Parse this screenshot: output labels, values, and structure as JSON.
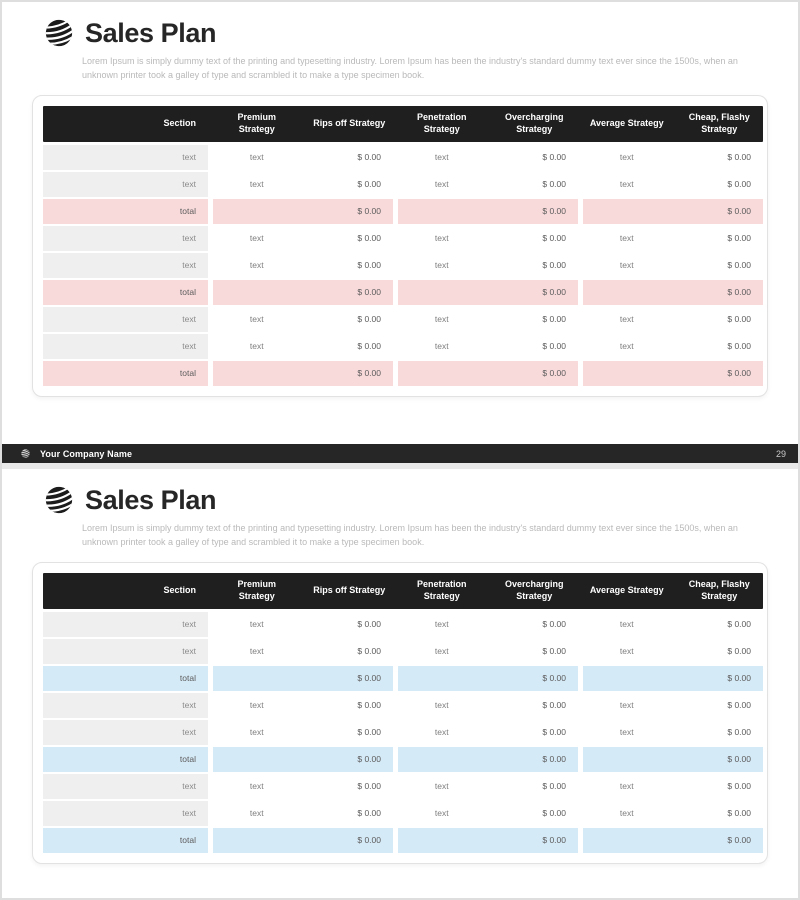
{
  "page": {
    "title": "Sales Plan",
    "description": "Lorem Ipsum is simply dummy text of the printing and typesetting industry. Lorem Ipsum has been the industry's standard dummy text ever since the 1500s, when an unknown printer took a galley of type and scrambled it to make a type specimen book.",
    "footer_company": "Your Company Name",
    "footer_page": "29"
  },
  "table": {
    "header": [
      "Section",
      "Premium Strategy",
      "Rips off Strategy",
      "Penetration Strategy",
      "Overcharging Strategy",
      "Average Strategy",
      "Cheap, Flashy Strategy"
    ],
    "row_groups": [
      {
        "rows": [
          [
            "text",
            "text",
            "$ 0.00",
            "text",
            "$ 0.00",
            "text",
            "$ 0.00"
          ],
          [
            "text",
            "text",
            "$ 0.00",
            "text",
            "$ 0.00",
            "text",
            "$ 0.00"
          ]
        ],
        "total": {
          "label": "total",
          "values": [
            "$ 0.00",
            "$ 0.00",
            "$ 0.00"
          ]
        }
      },
      {
        "rows": [
          [
            "text",
            "text",
            "$ 0.00",
            "text",
            "$ 0.00",
            "text",
            "$ 0.00"
          ],
          [
            "text",
            "text",
            "$ 0.00",
            "text",
            "$ 0.00",
            "text",
            "$ 0.00"
          ]
        ],
        "total": {
          "label": "total",
          "values": [
            "$ 0.00",
            "$ 0.00",
            "$ 0.00"
          ]
        }
      },
      {
        "rows": [
          [
            "text",
            "text",
            "$ 0.00",
            "text",
            "$ 0.00",
            "text",
            "$ 0.00"
          ],
          [
            "text",
            "text",
            "$ 0.00",
            "text",
            "$ 0.00",
            "text",
            "$ 0.00"
          ]
        ],
        "total": {
          "label": "total",
          "values": [
            "$ 0.00",
            "$ 0.00",
            "$ 0.00"
          ]
        }
      }
    ]
  },
  "slides": [
    {
      "variant": "pink",
      "accent": "#f9dadb"
    },
    {
      "variant": "blue",
      "accent": "#d5eaf7"
    }
  ],
  "colors": {
    "table_header_bg": "#1f1f1f",
    "footer_bar_bg": "#262626",
    "section_cell_bg": "#efefef",
    "total_pink": "#f9dadb",
    "total_blue": "#d5eaf7"
  }
}
